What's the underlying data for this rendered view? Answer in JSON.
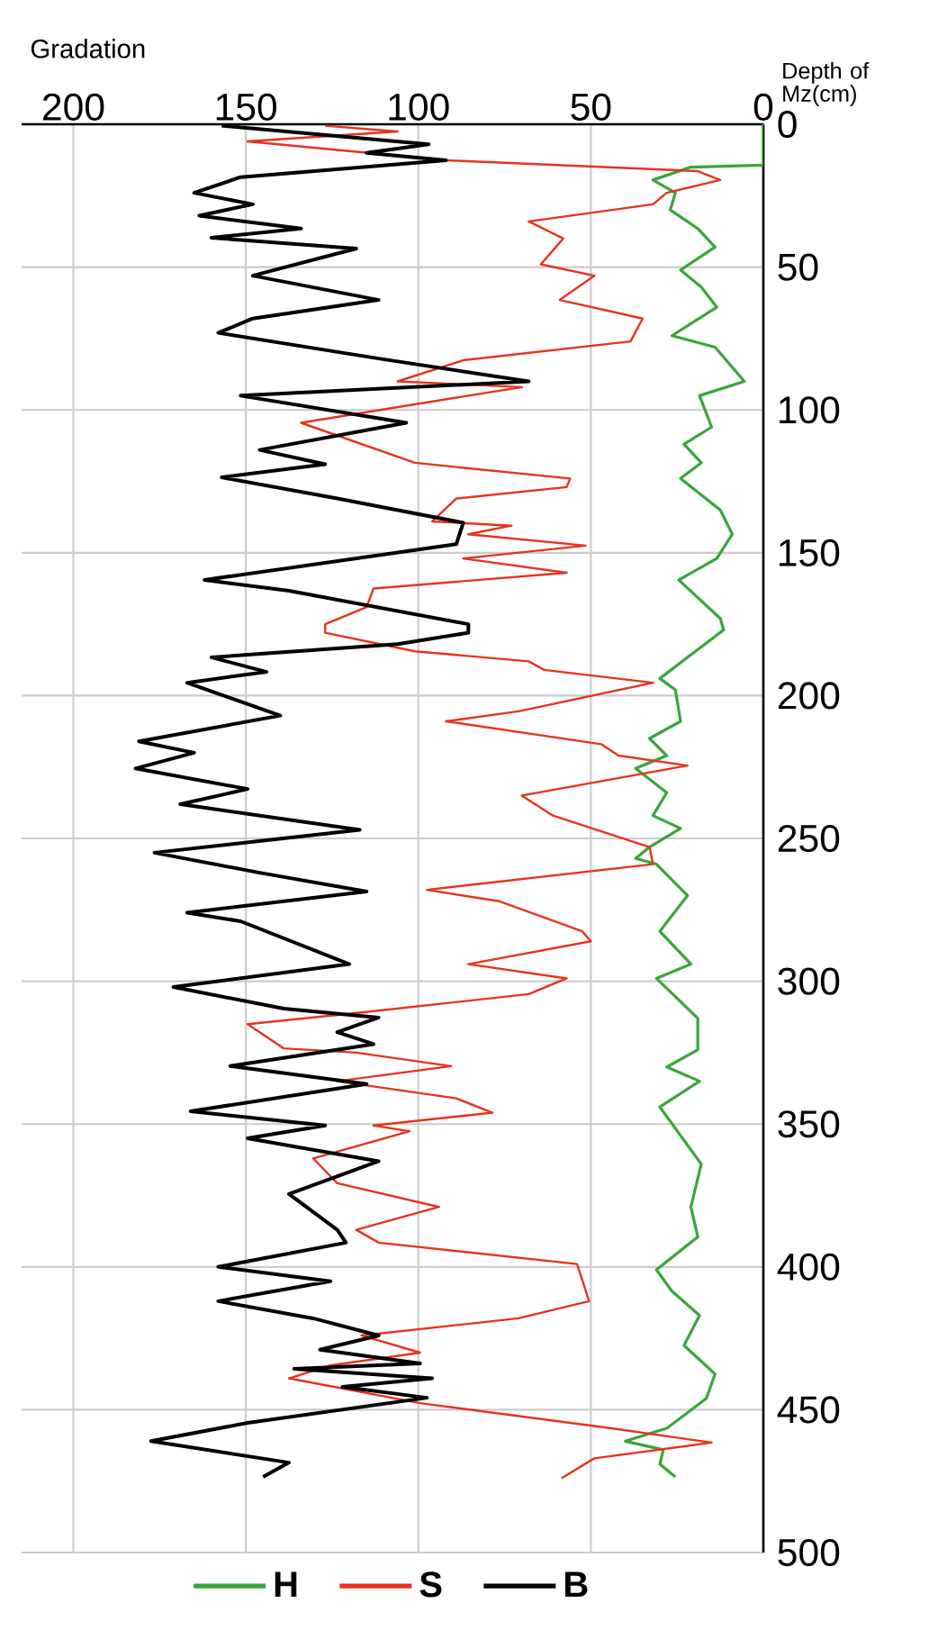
{
  "chart_data": {
    "type": "line",
    "orientation": "horizontal",
    "xlabel": "Gradation",
    "ylabel": "Depth of Mz(cm)",
    "xlim": [
      215,
      0
    ],
    "xticks": [
      200,
      150,
      100,
      50,
      0
    ],
    "ylim": [
      500,
      0
    ],
    "yticks": [
      0,
      50,
      100,
      150,
      200,
      250,
      300,
      350,
      400,
      450,
      500
    ],
    "grid": true,
    "legend": "bottom",
    "marker": "none",
    "series": [
      {
        "name": "H",
        "color": "#3aa63a",
        "x": [
          0,
          14.3,
          15,
          19.5,
          24,
          30,
          36.5,
          43,
          51,
          57,
          64,
          74,
          78,
          90,
          95,
          106,
          112,
          118.5,
          124,
          135,
          143.5,
          152,
          159.5,
          173,
          177,
          194,
          198,
          209,
          215,
          221,
          225.5,
          234,
          242,
          246.5,
          253,
          257,
          259,
          270,
          282.5,
          294,
          299,
          313,
          324,
          330,
          335,
          344,
          364,
          379,
          389.5,
          401,
          408.5,
          417,
          427.5,
          437.5,
          446,
          456.5,
          461,
          464,
          469,
          473.5
        ],
        "values": [
          0,
          0,
          21,
          32,
          25.5,
          27,
          19,
          14,
          24,
          18,
          13.5,
          26.5,
          14,
          5.5,
          18.5,
          15,
          23,
          18,
          24,
          12.5,
          9,
          13.5,
          24.5,
          12.5,
          11.5,
          30,
          25.5,
          24,
          33,
          28,
          37,
          28,
          32,
          24,
          33,
          37,
          31,
          22,
          30,
          21,
          31,
          19,
          19,
          28,
          18.5,
          30,
          18,
          21,
          19,
          31,
          26.5,
          18.5,
          23,
          14,
          16.5,
          28,
          40,
          29,
          30,
          25.5
        ]
      },
      {
        "name": "S",
        "color": "#e8321e",
        "x": [
          0.5,
          2.5,
          6,
          12.6,
          16.4,
          19.5,
          24,
          28,
          34,
          40,
          49,
          53,
          61.5,
          68,
          76,
          82.6,
          90,
          92,
          95,
          104.5,
          118.5,
          124,
          127,
          131,
          139,
          140.5,
          143.5,
          147.5,
          152,
          157,
          162.5,
          169,
          175,
          178,
          184.5,
          188,
          191,
          195.5,
          205.5,
          209,
          217,
          221,
          224.5,
          235,
          242,
          253,
          259,
          268,
          272,
          282.5,
          286,
          294,
          299,
          304.5,
          311,
          315,
          323.5,
          325,
          329.7,
          335,
          341,
          346,
          350.5,
          352.5,
          362,
          370.7,
          379,
          387,
          391.5,
          399,
          412,
          418,
          424,
          430,
          434.5,
          439,
          447.7,
          456.5,
          461.5,
          467,
          474
        ],
        "values": [
          127,
          106,
          149.5,
          92,
          19,
          12.5,
          28,
          32,
          68,
          58,
          64.5,
          49,
          59,
          35,
          38.5,
          87,
          106,
          70,
          85.5,
          134,
          101,
          56,
          57,
          89,
          96,
          73,
          85.5,
          51.5,
          87,
          57,
          113,
          115,
          127,
          127,
          101,
          68,
          63.5,
          32,
          71,
          92,
          47,
          42,
          22,
          70,
          61,
          33,
          32,
          97.5,
          76.5,
          52.5,
          50,
          85.5,
          57,
          68,
          117,
          149.5,
          139,
          118,
          90.5,
          123.5,
          89,
          78.5,
          113,
          102.5,
          130.5,
          123.5,
          94,
          118,
          111.5,
          54,
          50.5,
          71,
          116.5,
          99.5,
          125.5,
          137.5,
          99.5,
          44,
          15,
          49,
          58.5
        ]
      },
      {
        "name": "B",
        "color": "#000000",
        "x": [
          0.5,
          7,
          10,
          12.6,
          18.5,
          24,
          28,
          32,
          36.5,
          39.7,
          43.5,
          53,
          61.5,
          68,
          73,
          82,
          90,
          95,
          104.5,
          114,
          119,
          123.6,
          131,
          139.5,
          147,
          159.5,
          163.3,
          175,
          178,
          182,
          186.6,
          191.7,
          195.5,
          207,
          216,
          220,
          225.5,
          232.7,
          238,
          247,
          255,
          262,
          268.6,
          276,
          279,
          294,
          302,
          309.6,
          312.7,
          317.8,
          322,
          329.7,
          336,
          345.5,
          350.5,
          355,
          363,
          374.5,
          387,
          391.5,
          400,
          405,
          412,
          418,
          424,
          429,
          433.8,
          435.7,
          439,
          442,
          445.8,
          454.6,
          461,
          468.5,
          473.5
        ],
        "values": [
          157,
          97,
          115,
          92,
          151.5,
          165,
          148,
          163.5,
          134,
          160,
          118,
          148,
          111.5,
          148,
          158,
          111.5,
          68,
          151.5,
          103.5,
          146,
          127,
          157,
          123.5,
          87,
          89,
          162,
          137.5,
          85.5,
          85.5,
          106,
          160,
          144,
          167,
          140,
          181,
          165,
          182,
          149.5,
          169,
          117,
          176.5,
          146,
          115,
          167,
          151.5,
          120,
          171,
          139,
          111.5,
          123.5,
          113,
          154.5,
          115,
          166,
          127,
          149.5,
          111.5,
          137.5,
          123.5,
          121,
          158,
          125.5,
          158,
          130.5,
          111.5,
          128.5,
          99.5,
          136,
          96,
          122,
          97.5,
          149.5,
          177.5,
          137.5,
          145
        ]
      }
    ]
  }
}
